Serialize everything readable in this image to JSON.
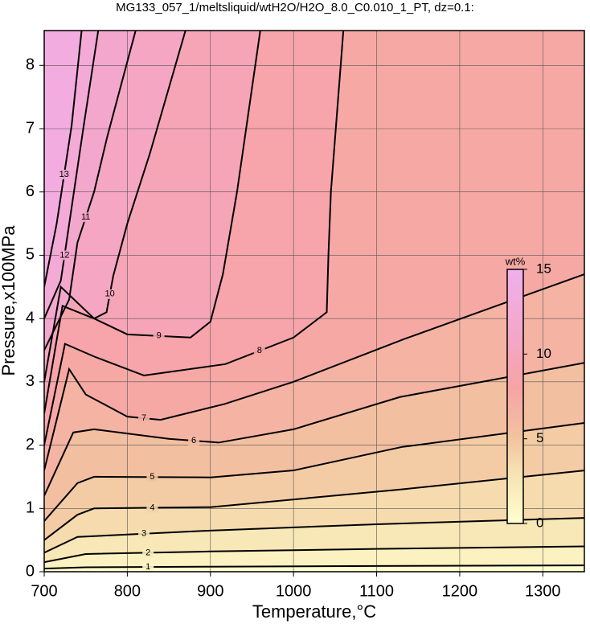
{
  "chart_data": {
    "type": "contour",
    "title": "MG133_057_1/meltsliquid/wtH2O/H2O_8.0_C0.010_1_PT, dz=0.1:",
    "x_label": "Temperature,°C",
    "y_label": "Pressure,x100MPa",
    "xlim": [
      700,
      1350
    ],
    "ylim": [
      0,
      8.55
    ],
    "xticks": [
      700,
      800,
      900,
      1000,
      1100,
      1200,
      1300
    ],
    "yticks": [
      0,
      1,
      2,
      3,
      4,
      5,
      6,
      7,
      8
    ],
    "grid": true,
    "colorbar": {
      "label": "wt%",
      "zlim": [
        0,
        15
      ],
      "ticks": [
        0,
        5,
        10,
        15
      ]
    },
    "colormap": [
      {
        "value": 0,
        "color": "#ffffd0"
      },
      {
        "value": 3,
        "color": "#f6e2b2"
      },
      {
        "value": 5,
        "color": "#f2c4a0"
      },
      {
        "value": 8,
        "color": "#f7a3a5"
      },
      {
        "value": 11,
        "color": "#f4a6c8"
      },
      {
        "value": 15,
        "color": "#f0b0ec"
      }
    ],
    "contours": [
      {
        "level": 1,
        "x": [
          700,
          750,
          900,
          1100,
          1350
        ],
        "y": [
          0.05,
          0.07,
          0.08,
          0.09,
          0.1
        ]
      },
      {
        "level": 2,
        "x": [
          700,
          750,
          900,
          1100,
          1350
        ],
        "y": [
          0.15,
          0.28,
          0.32,
          0.36,
          0.4
        ]
      },
      {
        "level": 3,
        "x": [
          700,
          740,
          900,
          1100,
          1350
        ],
        "y": [
          0.3,
          0.55,
          0.65,
          0.75,
          0.85
        ]
      },
      {
        "level": 4,
        "x": [
          700,
          740,
          760,
          900,
          1130,
          1350
        ],
        "y": [
          0.5,
          0.9,
          1.0,
          1.02,
          1.3,
          1.6
        ]
      },
      {
        "level": 5,
        "x": [
          700,
          740,
          760,
          900,
          1000,
          1130,
          1350
        ],
        "y": [
          0.8,
          1.4,
          1.5,
          1.49,
          1.6,
          1.97,
          2.35
        ]
      },
      {
        "level": 6,
        "x": [
          700,
          735,
          760,
          850,
          910,
          1000,
          1128,
          1350
        ],
        "y": [
          1.2,
          2.2,
          2.25,
          2.1,
          2.04,
          2.25,
          2.76,
          3.3
        ]
      },
      {
        "level": 7,
        "x": [
          700,
          730,
          750,
          800,
          840,
          917,
          1000,
          1134,
          1350
        ],
        "y": [
          1.6,
          3.2,
          2.8,
          2.45,
          2.4,
          2.65,
          3.0,
          3.68,
          4.7
        ]
      },
      {
        "level": 8,
        "x": [
          700,
          725,
          760,
          820,
          918,
          1000,
          1040,
          1042,
          1045,
          1060
        ],
        "y": [
          2.0,
          3.6,
          3.4,
          3.1,
          3.28,
          3.7,
          4.1,
          5.0,
          6.0,
          8.55
        ]
      },
      {
        "level": 9,
        "x": [
          700,
          722,
          760,
          800,
          876,
          900,
          915,
          932,
          960
        ],
        "y": [
          2.5,
          4.2,
          4.0,
          3.75,
          3.7,
          3.95,
          4.7,
          6.0,
          8.55
        ]
      },
      {
        "level": 10,
        "x": [
          700,
          720,
          760,
          775,
          783,
          800,
          827,
          870
        ],
        "y": [
          3.0,
          4.5,
          4.0,
          4.1,
          4.67,
          5.5,
          6.6,
          8.55
        ]
      },
      {
        "level": 11,
        "x": [
          700,
          730,
          740,
          760,
          776,
          810
        ],
        "y": [
          3.5,
          4.3,
          5.2,
          6.0,
          6.88,
          8.55
        ]
      },
      {
        "level": 12,
        "x": [
          700,
          720,
          729,
          747,
          765
        ],
        "y": [
          4.0,
          4.6,
          5.4,
          7.0,
          8.55
        ]
      },
      {
        "level": 13,
        "x": [
          700,
          715,
          733,
          745
        ],
        "y": [
          4.5,
          5.5,
          7.05,
          8.55
        ]
      }
    ]
  }
}
